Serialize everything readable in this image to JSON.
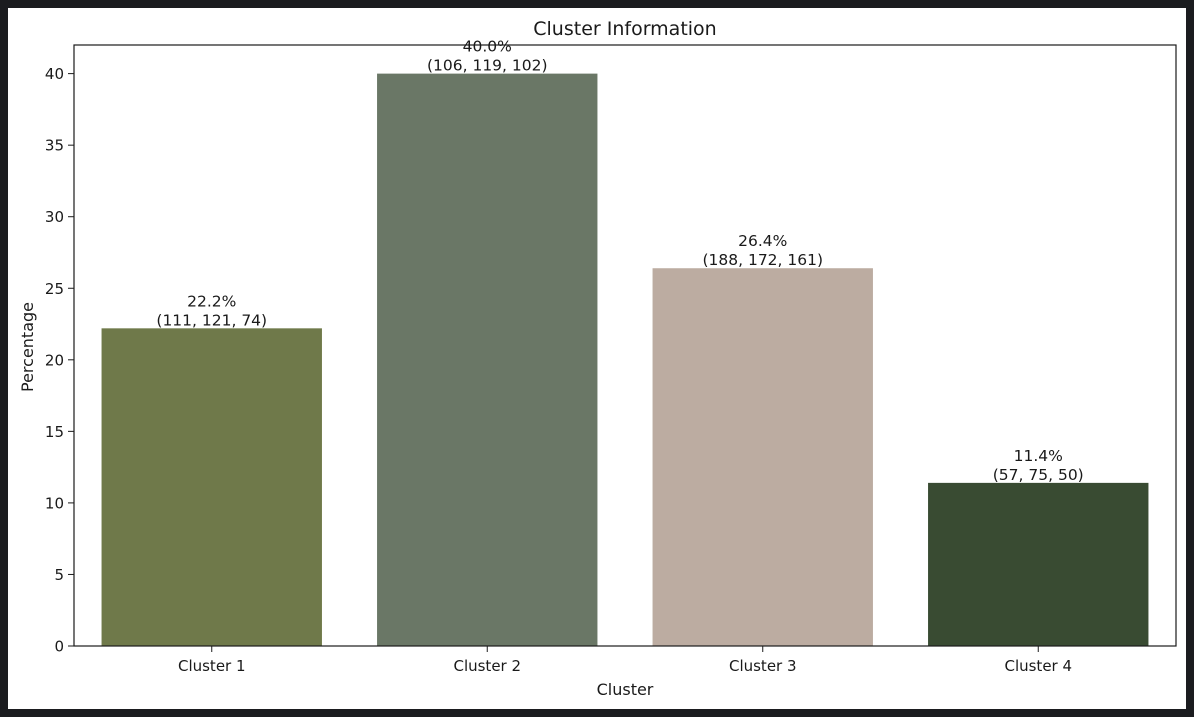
{
  "chart_data": {
    "type": "bar",
    "title": "Cluster Information",
    "xlabel": "Cluster",
    "ylabel": "Percentage",
    "categories": [
      "Cluster 1",
      "Cluster 2",
      "Cluster 3",
      "Cluster 4"
    ],
    "values": [
      22.2,
      40.0,
      26.4,
      11.4
    ],
    "value_labels": [
      "22.2%",
      "40.0%",
      "26.4%",
      "11.4%"
    ],
    "rgb_labels": [
      "(111, 121, 74)",
      "(106, 119, 102)",
      "(188, 172, 161)",
      "(57, 75, 50)"
    ],
    "bar_colors": [
      "#6f794a",
      "#6a7766",
      "#bcaca1",
      "#394b32"
    ],
    "ylim": [
      0,
      42
    ],
    "yticks": [
      0,
      5,
      10,
      15,
      20,
      25,
      30,
      35,
      40
    ],
    "grid": false,
    "legend": "none"
  },
  "colors": {
    "page_background": "#1b1c1f",
    "figure_background": "#ffffff",
    "axis": "#1a1a1a"
  }
}
